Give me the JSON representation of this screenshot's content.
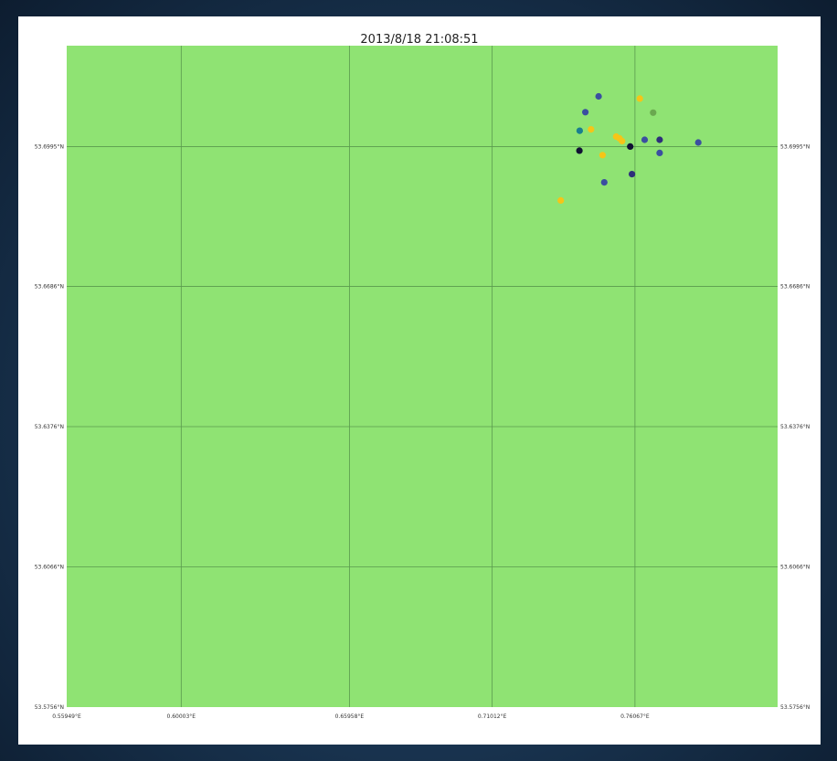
{
  "title": "2013/8/18 21:08:51",
  "map": {
    "land_color": "#8fe373",
    "grid_color": "#5a9a4e",
    "lon_range": [
      0.55949,
      0.81117
    ],
    "lat_range": [
      53.5756,
      53.7218
    ]
  },
  "axes": {
    "y_ticks": [
      {
        "value": 53.6995,
        "label": "53.6995°N"
      },
      {
        "value": 53.6686,
        "label": "53.6686°N"
      },
      {
        "value": 53.6376,
        "label": "53.6376°N"
      },
      {
        "value": 53.6066,
        "label": "53.6066°N"
      },
      {
        "value": 53.5756,
        "label": "53.5756°N"
      }
    ],
    "x_ticks": [
      {
        "value": 0.55949,
        "label": "0.55949°E"
      },
      {
        "value": 0.60003,
        "label": "0.60003°E"
      },
      {
        "value": 0.65958,
        "label": "0.65958°E"
      },
      {
        "value": 0.71012,
        "label": "0.71012°E"
      },
      {
        "value": 0.76067,
        "label": "0.76067°E"
      }
    ]
  },
  "chart_data": {
    "type": "scatter",
    "title": "2013/8/18 21:08:51",
    "xlabel": "",
    "ylabel": "",
    "xlim": [
      0.55949,
      0.81117
    ],
    "ylim": [
      53.5756,
      53.7218
    ],
    "grid": true,
    "points": [
      {
        "lon": 0.7478,
        "lat": 53.7106,
        "color": "#3b4fa0"
      },
      {
        "lon": 0.7431,
        "lat": 53.7071,
        "color": "#3b4fa0"
      },
      {
        "lon": 0.7624,
        "lat": 53.7101,
        "color": "#f5c518"
      },
      {
        "lon": 0.7671,
        "lat": 53.707,
        "color": "#6aa84f"
      },
      {
        "lon": 0.7411,
        "lat": 53.703,
        "color": "#1a7f8f"
      },
      {
        "lon": 0.7451,
        "lat": 53.7033,
        "color": "#f5c518"
      },
      {
        "lon": 0.754,
        "lat": 53.7017,
        "color": "#f5c518"
      },
      {
        "lon": 0.7552,
        "lat": 53.7013,
        "color": "#f5c518"
      },
      {
        "lon": 0.7561,
        "lat": 53.7007,
        "color": "#f5c518"
      },
      {
        "lon": 0.7641,
        "lat": 53.701,
        "color": "#3b4fa0"
      },
      {
        "lon": 0.7694,
        "lat": 53.701,
        "color": "#2e2e7a"
      },
      {
        "lon": 0.7831,
        "lat": 53.7004,
        "color": "#3b4fa0"
      },
      {
        "lon": 0.759,
        "lat": 53.6995,
        "color": "#111133"
      },
      {
        "lon": 0.741,
        "lat": 53.6986,
        "color": "#111133"
      },
      {
        "lon": 0.7492,
        "lat": 53.6976,
        "color": "#f5c518"
      },
      {
        "lon": 0.7694,
        "lat": 53.6981,
        "color": "#3b4fa0"
      },
      {
        "lon": 0.7596,
        "lat": 53.6934,
        "color": "#2e2e7a"
      },
      {
        "lon": 0.7498,
        "lat": 53.6916,
        "color": "#3b4fa0"
      },
      {
        "lon": 0.7344,
        "lat": 53.6876,
        "color": "#f5c518"
      }
    ]
  }
}
